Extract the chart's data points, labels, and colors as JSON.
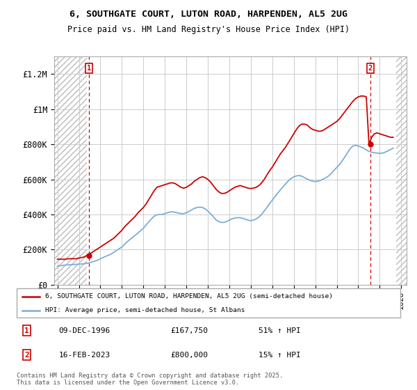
{
  "title_line1": "6, SOUTHGATE COURT, LUTON ROAD, HARPENDEN, AL5 2UG",
  "title_line2": "Price paid vs. HM Land Registry's House Price Index (HPI)",
  "ylim": [
    0,
    1300000
  ],
  "xlim_start": 1993.7,
  "xlim_end": 2026.5,
  "plot_bg_color": "#ffffff",
  "grid_color": "#cccccc",
  "red_color": "#cc0000",
  "blue_color": "#7aaed6",
  "annotation1_date": "09-DEC-1996",
  "annotation1_price": "£167,750",
  "annotation1_hpi": "51% ↑ HPI",
  "annotation2_date": "16-FEB-2023",
  "annotation2_price": "£800,000",
  "annotation2_hpi": "15% ↑ HPI",
  "legend_label_red": "6, SOUTHGATE COURT, LUTON ROAD, HARPENDEN, AL5 2UG (semi-detached house)",
  "legend_label_blue": "HPI: Average price, semi-detached house, St Albans",
  "footer": "Contains HM Land Registry data © Crown copyright and database right 2025.\nThis data is licensed under the Open Government Licence v3.0.",
  "ytick_labels": [
    "£0",
    "£200K",
    "£400K",
    "£600K",
    "£800K",
    "£1M",
    "£1.2M"
  ],
  "ytick_values": [
    0,
    200000,
    400000,
    600000,
    800000,
    1000000,
    1200000
  ],
  "hatch_left_end": 1996.75,
  "hatch_right_start": 2025.5,
  "point1_x": 1996.92,
  "point1_y": 167750,
  "point2_x": 2023.12,
  "point2_y": 800000,
  "red_x": [
    1994.0,
    1994.25,
    1994.5,
    1994.75,
    1995.0,
    1995.25,
    1995.5,
    1995.75,
    1996.0,
    1996.25,
    1996.5,
    1996.75,
    1997.0,
    1997.25,
    1997.5,
    1997.75,
    1998.0,
    1998.25,
    1998.5,
    1998.75,
    1999.0,
    1999.25,
    1999.5,
    1999.75,
    2000.0,
    2000.25,
    2000.5,
    2000.75,
    2001.0,
    2001.25,
    2001.5,
    2001.75,
    2002.0,
    2002.25,
    2002.5,
    2002.75,
    2003.0,
    2003.25,
    2003.5,
    2003.75,
    2004.0,
    2004.25,
    2004.5,
    2004.75,
    2005.0,
    2005.25,
    2005.5,
    2005.75,
    2006.0,
    2006.25,
    2006.5,
    2006.75,
    2007.0,
    2007.25,
    2007.5,
    2007.75,
    2008.0,
    2008.25,
    2008.5,
    2008.75,
    2009.0,
    2009.25,
    2009.5,
    2009.75,
    2010.0,
    2010.25,
    2010.5,
    2010.75,
    2011.0,
    2011.25,
    2011.5,
    2011.75,
    2012.0,
    2012.25,
    2012.5,
    2012.75,
    2013.0,
    2013.25,
    2013.5,
    2013.75,
    2014.0,
    2014.25,
    2014.5,
    2014.75,
    2015.0,
    2015.25,
    2015.5,
    2015.75,
    2016.0,
    2016.25,
    2016.5,
    2016.75,
    2017.0,
    2017.25,
    2017.5,
    2017.75,
    2018.0,
    2018.25,
    2018.5,
    2018.75,
    2019.0,
    2019.25,
    2019.5,
    2019.75,
    2020.0,
    2020.25,
    2020.5,
    2020.75,
    2021.0,
    2021.25,
    2021.5,
    2021.75,
    2022.0,
    2022.25,
    2022.5,
    2022.75,
    2023.0,
    2023.25,
    2023.5,
    2023.75,
    2024.0,
    2024.25,
    2024.5,
    2024.75,
    2025.0,
    2025.25
  ],
  "red_y": [
    145000,
    145000,
    145000,
    145000,
    148000,
    148000,
    148000,
    148000,
    152000,
    155000,
    158000,
    167750,
    175000,
    185000,
    195000,
    205000,
    215000,
    225000,
    235000,
    245000,
    255000,
    265000,
    280000,
    295000,
    310000,
    330000,
    345000,
    360000,
    375000,
    390000,
    410000,
    425000,
    440000,
    460000,
    485000,
    510000,
    535000,
    555000,
    560000,
    565000,
    570000,
    575000,
    580000,
    580000,
    575000,
    565000,
    555000,
    550000,
    555000,
    565000,
    575000,
    590000,
    600000,
    610000,
    615000,
    610000,
    600000,
    585000,
    565000,
    545000,
    530000,
    520000,
    520000,
    525000,
    535000,
    545000,
    555000,
    560000,
    565000,
    560000,
    555000,
    550000,
    548000,
    550000,
    555000,
    565000,
    580000,
    600000,
    625000,
    650000,
    670000,
    695000,
    720000,
    745000,
    765000,
    785000,
    810000,
    835000,
    860000,
    885000,
    905000,
    915000,
    915000,
    910000,
    895000,
    885000,
    880000,
    875000,
    875000,
    880000,
    890000,
    900000,
    910000,
    920000,
    930000,
    945000,
    965000,
    985000,
    1005000,
    1025000,
    1045000,
    1060000,
    1070000,
    1075000,
    1075000,
    1070000,
    800000,
    840000,
    860000,
    865000,
    860000,
    855000,
    850000,
    845000,
    840000,
    840000
  ],
  "blue_x": [
    1994.0,
    1994.25,
    1994.5,
    1994.75,
    1995.0,
    1995.25,
    1995.5,
    1995.75,
    1996.0,
    1996.25,
    1996.5,
    1996.75,
    1997.0,
    1997.25,
    1997.5,
    1997.75,
    1998.0,
    1998.25,
    1998.5,
    1998.75,
    1999.0,
    1999.25,
    1999.5,
    1999.75,
    2000.0,
    2000.25,
    2000.5,
    2000.75,
    2001.0,
    2001.25,
    2001.5,
    2001.75,
    2002.0,
    2002.25,
    2002.5,
    2002.75,
    2003.0,
    2003.25,
    2003.5,
    2003.75,
    2004.0,
    2004.25,
    2004.5,
    2004.75,
    2005.0,
    2005.25,
    2005.5,
    2005.75,
    2006.0,
    2006.25,
    2006.5,
    2006.75,
    2007.0,
    2007.25,
    2007.5,
    2007.75,
    2008.0,
    2008.25,
    2008.5,
    2008.75,
    2009.0,
    2009.25,
    2009.5,
    2009.75,
    2010.0,
    2010.25,
    2010.5,
    2010.75,
    2011.0,
    2011.25,
    2011.5,
    2011.75,
    2012.0,
    2012.25,
    2012.5,
    2012.75,
    2013.0,
    2013.25,
    2013.5,
    2013.75,
    2014.0,
    2014.25,
    2014.5,
    2014.75,
    2015.0,
    2015.25,
    2015.5,
    2015.75,
    2016.0,
    2016.25,
    2016.5,
    2016.75,
    2017.0,
    2017.25,
    2017.5,
    2017.75,
    2018.0,
    2018.25,
    2018.5,
    2018.75,
    2019.0,
    2019.25,
    2019.5,
    2019.75,
    2020.0,
    2020.25,
    2020.5,
    2020.75,
    2021.0,
    2021.25,
    2021.5,
    2021.75,
    2022.0,
    2022.25,
    2022.5,
    2022.75,
    2023.0,
    2023.25,
    2023.5,
    2023.75,
    2024.0,
    2024.25,
    2024.5,
    2024.75,
    2025.0,
    2025.25
  ],
  "blue_y": [
    105000,
    108000,
    110000,
    112000,
    113000,
    114000,
    115000,
    116000,
    117000,
    118000,
    120000,
    122000,
    125000,
    130000,
    135000,
    140000,
    148000,
    155000,
    162000,
    168000,
    175000,
    185000,
    195000,
    205000,
    215000,
    230000,
    245000,
    258000,
    270000,
    282000,
    295000,
    308000,
    322000,
    340000,
    358000,
    375000,
    390000,
    398000,
    400000,
    400000,
    405000,
    410000,
    415000,
    415000,
    412000,
    408000,
    405000,
    405000,
    410000,
    418000,
    427000,
    435000,
    440000,
    442000,
    440000,
    432000,
    420000,
    405000,
    388000,
    370000,
    360000,
    355000,
    355000,
    360000,
    368000,
    375000,
    380000,
    382000,
    382000,
    378000,
    373000,
    368000,
    365000,
    368000,
    375000,
    385000,
    400000,
    420000,
    440000,
    462000,
    482000,
    502000,
    522000,
    540000,
    558000,
    575000,
    592000,
    605000,
    615000,
    620000,
    622000,
    618000,
    610000,
    602000,
    595000,
    590000,
    588000,
    590000,
    595000,
    602000,
    610000,
    620000,
    635000,
    652000,
    668000,
    685000,
    705000,
    728000,
    752000,
    775000,
    790000,
    795000,
    790000,
    785000,
    778000,
    768000,
    760000,
    755000,
    752000,
    750000,
    748000,
    750000,
    755000,
    762000,
    770000,
    778000
  ]
}
